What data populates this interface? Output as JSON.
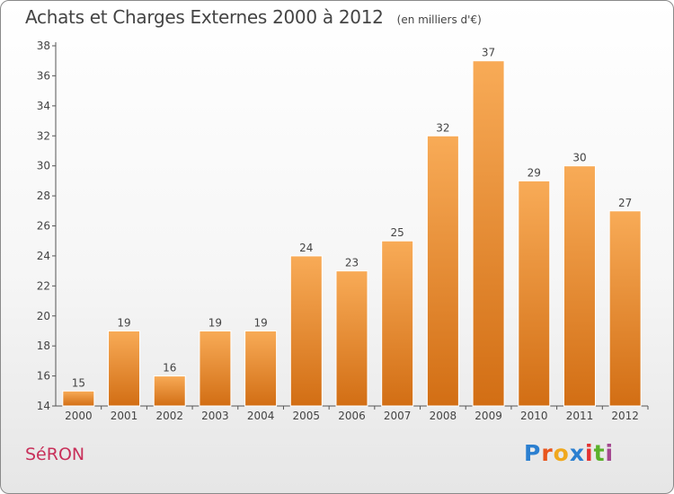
{
  "title": "Achats et Charges Externes 2000 à 2012",
  "unit": "(en milliers d'€)",
  "commune": "SéRON",
  "logo": {
    "letters": [
      "P",
      "r",
      "o",
      "x",
      "i",
      "t",
      "i"
    ],
    "colors": [
      "#2b7fd0",
      "#e8551c",
      "#f0a81d",
      "#2b7fd0",
      "#e4312f",
      "#5ab12b",
      "#a4478f"
    ]
  },
  "colors": {
    "bar_top": "#f8ab57",
    "bar_bottom": "#d26e14",
    "axis": "#555555",
    "text": "#444444"
  },
  "chart_data": {
    "type": "bar",
    "categories": [
      "2000",
      "2001",
      "2002",
      "2003",
      "2004",
      "2005",
      "2006",
      "2007",
      "2008",
      "2009",
      "2010",
      "2011",
      "2012"
    ],
    "values": [
      15,
      19,
      16,
      19,
      19,
      24,
      23,
      25,
      32,
      37,
      29,
      30,
      27
    ],
    "title": "Achats et Charges Externes 2000 à 2012",
    "ylim": [
      14,
      38
    ],
    "yticks": [
      14,
      16,
      18,
      20,
      22,
      24,
      26,
      28,
      30,
      32,
      34,
      36,
      38
    ],
    "grid": false,
    "legend": "none"
  }
}
